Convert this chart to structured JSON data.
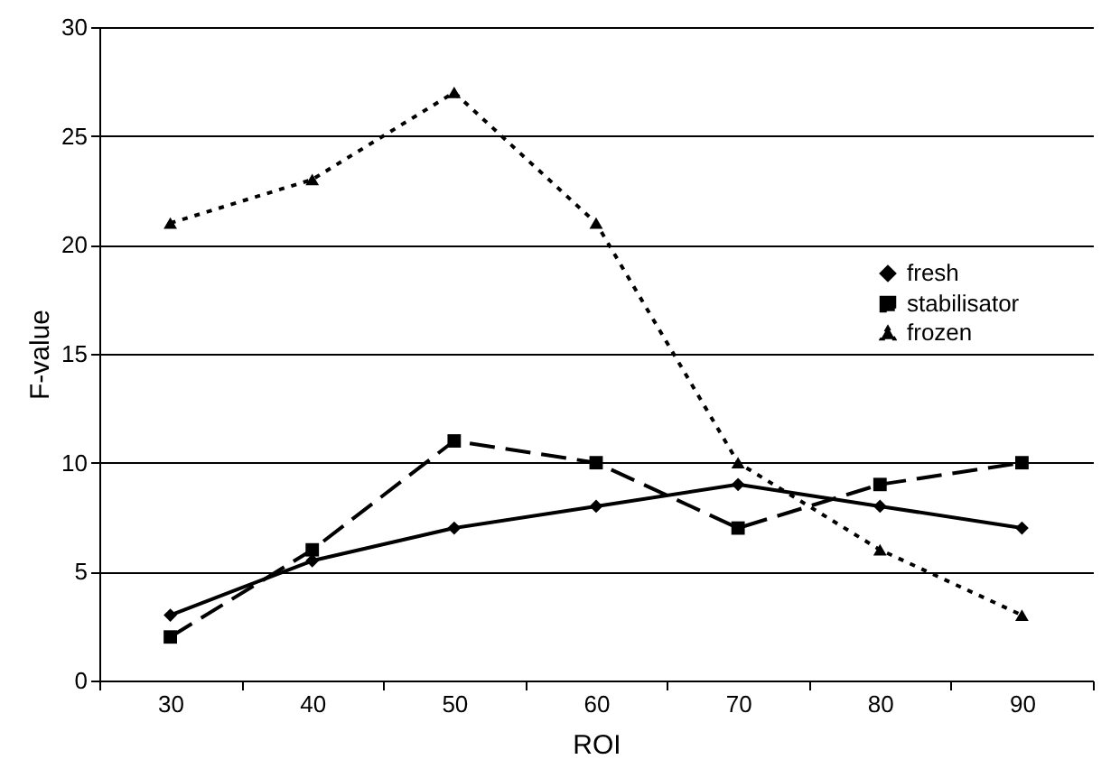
{
  "chart_data": {
    "type": "line",
    "xlabel": "ROI",
    "ylabel": "F-value",
    "categories": [
      "30",
      "40",
      "50",
      "60",
      "70",
      "80",
      "90"
    ],
    "series": [
      {
        "name": "fresh",
        "color": "#000000",
        "marker": "diamond",
        "line_style": "solid",
        "values": [
          3,
          5.5,
          7,
          8,
          9,
          8,
          7
        ]
      },
      {
        "name": "stabilisator",
        "color": "#000000",
        "marker": "square",
        "line_style": "dashed",
        "values": [
          2,
          6,
          11,
          10,
          7,
          9,
          10
        ]
      },
      {
        "name": "frozen",
        "color": "#000000",
        "marker": "triangle",
        "line_style": "dotted",
        "values": [
          21,
          23,
          27,
          21,
          10,
          6,
          3
        ]
      }
    ],
    "ylim": [
      0,
      30
    ],
    "yticks": [
      0,
      5,
      10,
      15,
      20,
      25,
      30
    ],
    "grid": "y",
    "legend": "right"
  }
}
